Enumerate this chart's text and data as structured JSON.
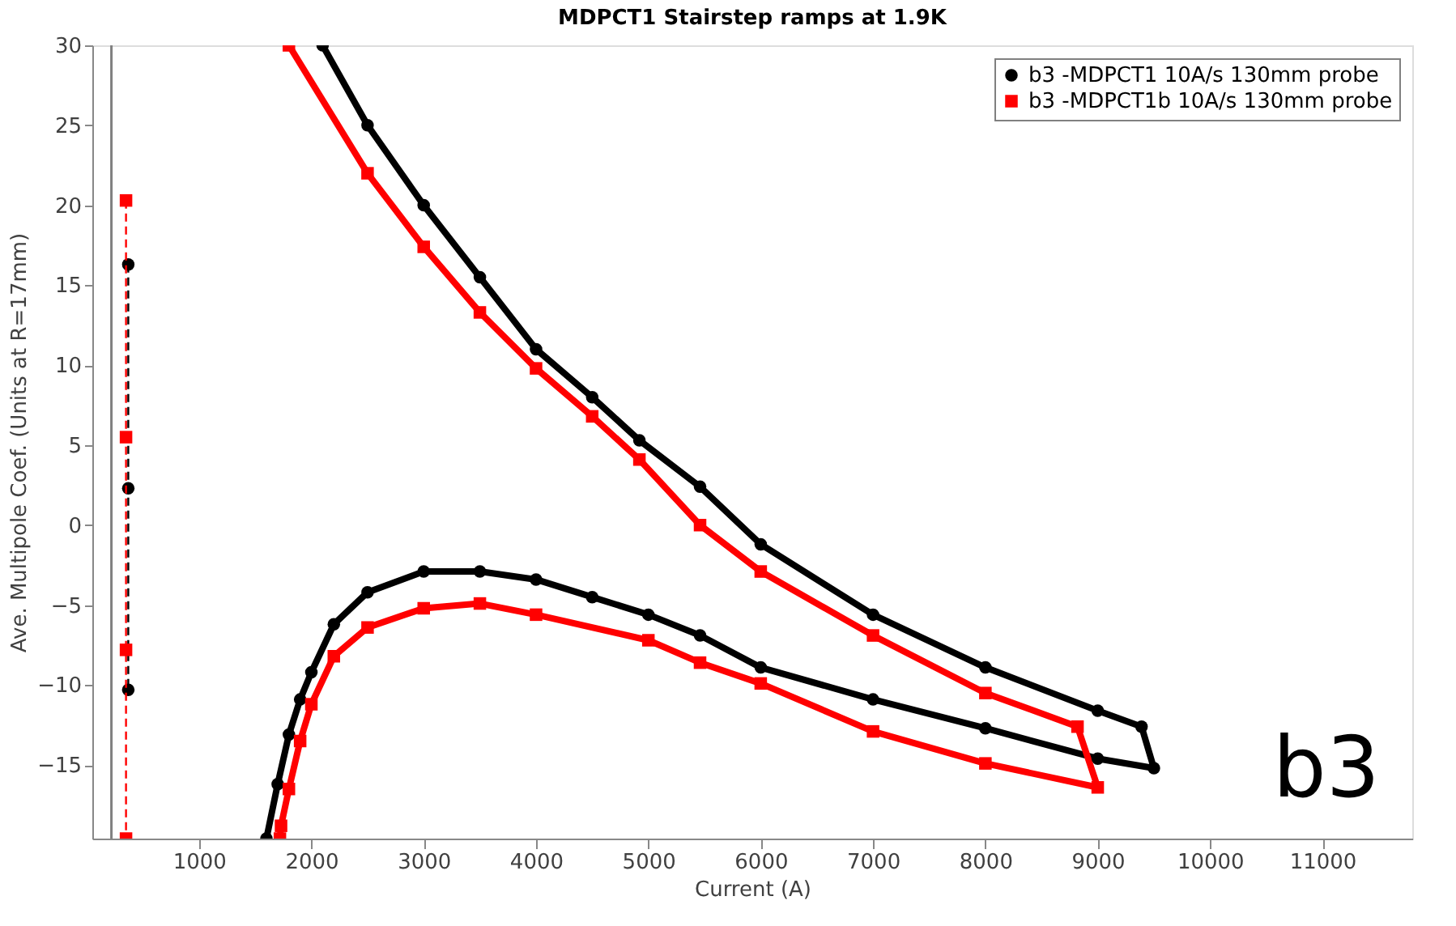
{
  "chart_data": {
    "type": "line",
    "title": "MDPCT1 Stairstep ramps at 1.9K",
    "xlabel": "Current (A)",
    "ylabel": "Ave. Multipole Coef. (Units at R=17mm)",
    "xlim": [
      50,
      11800
    ],
    "ylim": [
      -19.6,
      30
    ],
    "xticks": [
      1000,
      2000,
      3000,
      4000,
      5000,
      6000,
      7000,
      8000,
      9000,
      10000,
      11000
    ],
    "yticks": [
      -15,
      -10,
      -5,
      0,
      5,
      10,
      15,
      20,
      25,
      30
    ],
    "grid": false,
    "legend": "top right",
    "annotations": [
      "b3"
    ],
    "ref_lines": [
      {
        "axis": "x",
        "value": 220,
        "color": "#808080"
      }
    ],
    "series": [
      {
        "name": "b3 -MDPCT1 10A/s 130mm probe",
        "color": "#000000",
        "marker": "circle",
        "line_style": "solid",
        "x": [
          1600,
          1700,
          1800,
          1900,
          2000,
          2200,
          2500,
          3000,
          3500,
          4000,
          4500,
          5000,
          5460,
          6000,
          7000,
          8000,
          9000,
          9500,
          9390,
          9000,
          8000,
          7000,
          6000,
          5460,
          4920,
          4500,
          4000,
          3500,
          3000,
          2500,
          2100
        ],
        "values": [
          -19.6,
          -16.2,
          -13.1,
          -10.9,
          -9.2,
          -6.2,
          -4.2,
          -2.9,
          -2.9,
          -3.4,
          -4.5,
          -5.6,
          -6.9,
          -8.9,
          -10.9,
          -12.7,
          -14.6,
          -15.2,
          -12.6,
          -11.6,
          -8.9,
          -5.6,
          -1.2,
          2.4,
          5.3,
          8,
          11,
          15.5,
          20,
          25,
          30
        ]
      },
      {
        "name": "b3 -MDPCT1b 10A/s 130mm probe",
        "color": "#ff0000",
        "marker": "square",
        "line_style": "solid",
        "x": [
          1720,
          1730,
          1800,
          1900,
          2000,
          2200,
          2500,
          3000,
          3500,
          4000,
          5000,
          5460,
          6000,
          7000,
          8000,
          9000,
          8820,
          8000,
          7000,
          6000,
          5460,
          4920,
          4500,
          4000,
          3500,
          3000,
          2500,
          1800
        ],
        "values": [
          -19.6,
          -18.8,
          -16.5,
          -13.5,
          -11.2,
          -8.2,
          -6.4,
          -5.2,
          -4.9,
          -5.6,
          -7.2,
          -8.6,
          -9.9,
          -12.9,
          -14.9,
          -16.4,
          -12.6,
          -10.5,
          -6.9,
          -2.9,
          0,
          4.1,
          6.8,
          9.8,
          13.3,
          17.4,
          22,
          30
        ]
      },
      {
        "color": "#000000",
        "marker": "circle",
        "line_style": "dashed",
        "x": [
          370,
          370,
          370
        ],
        "values": [
          16.3,
          2.3,
          -10.3
        ]
      },
      {
        "color": "#ff0000",
        "marker": "square",
        "line_style": "dashed",
        "x": [
          350,
          350,
          350,
          350
        ],
        "values": [
          20.3,
          5.5,
          -7.8,
          -19.6
        ]
      }
    ]
  }
}
